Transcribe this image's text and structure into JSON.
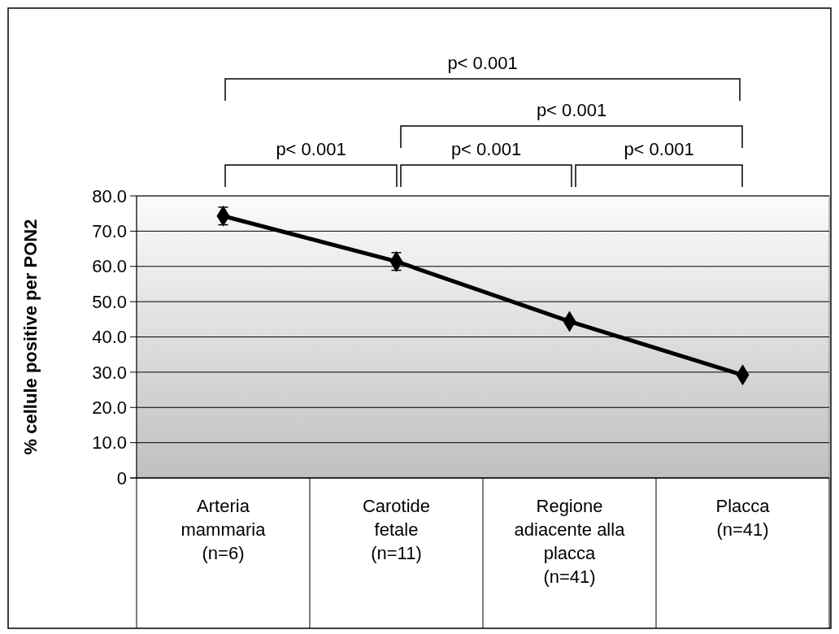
{
  "chart_data": {
    "type": "line",
    "ylabel": "% cellule positive per PON2",
    "categories": [
      "Arteria\nmammaria\n(n=6)",
      "Carotide\nfetale\n(n=11)",
      "Regione\nadiacente alla\nplacca\n(n=41)",
      "Placca\n(n=41)"
    ],
    "series": [
      {
        "color": "#000000",
        "values": [
          74.3,
          61.4,
          44.4,
          29.2
        ],
        "errors": [
          2.5,
          2.5,
          null,
          null
        ]
      }
    ],
    "ylim": [
      0,
      80
    ],
    "yticks": [
      {
        "value": 0,
        "label": "0"
      },
      {
        "value": 10,
        "label": "10.0"
      },
      {
        "value": 20,
        "label": "20.0"
      },
      {
        "value": 30,
        "label": "30.0"
      },
      {
        "value": 40,
        "label": "40.0"
      },
      {
        "value": 50,
        "label": "50.0"
      },
      {
        "value": 60,
        "label": "60.0"
      },
      {
        "value": 70,
        "label": "70.0"
      },
      {
        "value": 80,
        "label": "80.0"
      }
    ],
    "grid": "y",
    "marker": "diamond",
    "line_style": "solid",
    "annotations": [
      "p< 0.001",
      "p< 0.001",
      "p< 0.001",
      "p< 0.001",
      "p< 0.001"
    ]
  }
}
